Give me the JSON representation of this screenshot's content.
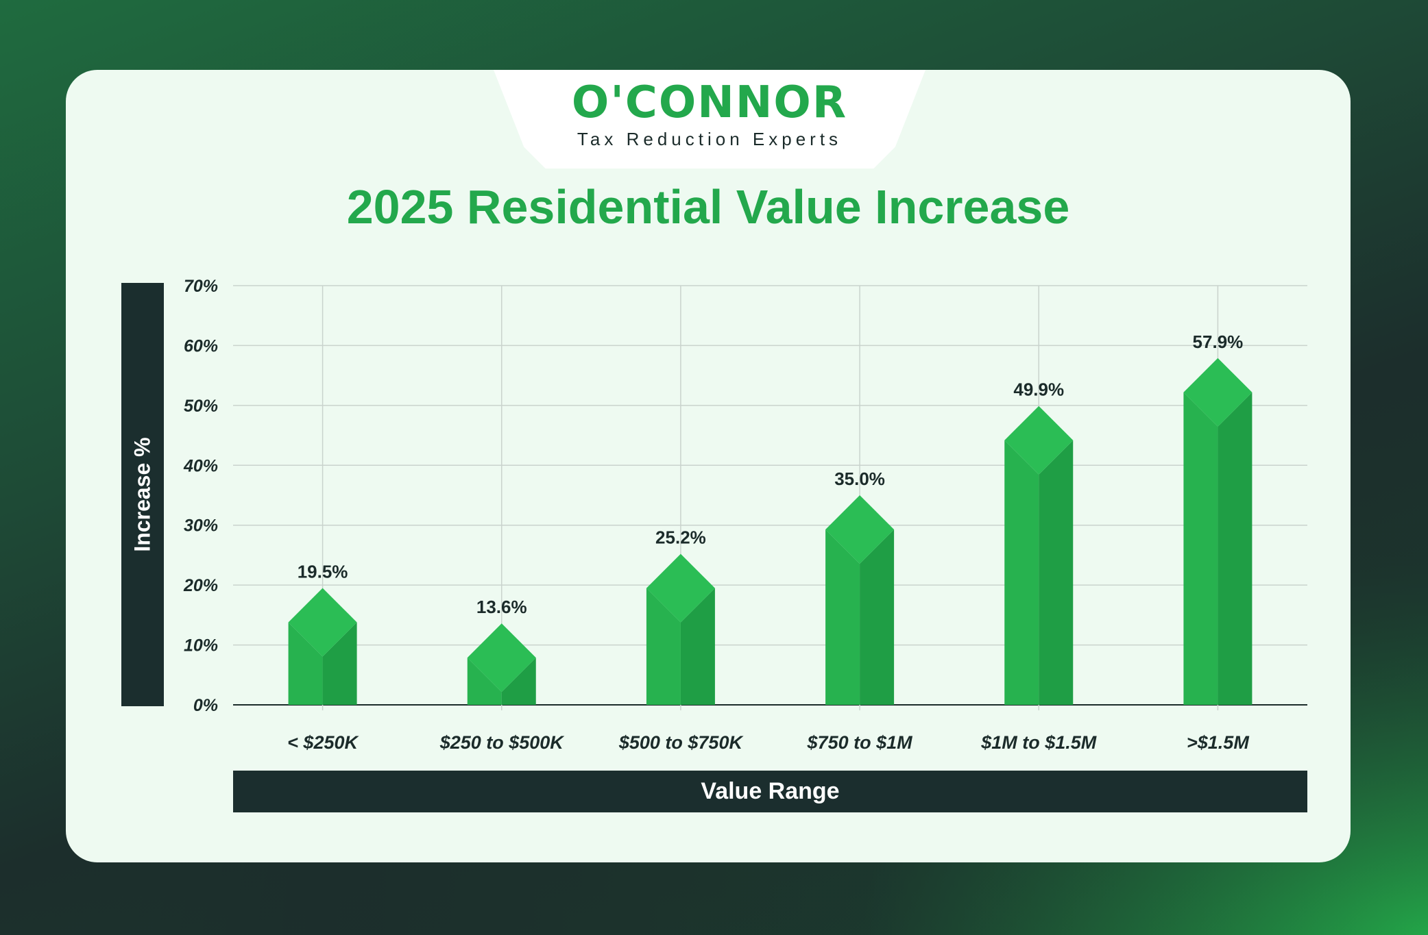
{
  "brand": {
    "name": "O'CONNOR",
    "tagline": "Tax Reduction Experts",
    "color": "#23a84c"
  },
  "chart_data": {
    "type": "bar",
    "title": "2025 Residential Value Increase",
    "xlabel": "Value Range",
    "ylabel": "Increase %",
    "categories": [
      "< $250K",
      "$250 to $500K",
      "$500 to $750K",
      "$750 to $1M",
      "$1M to $1.5M",
      ">$1.5M"
    ],
    "values": [
      19.5,
      13.6,
      25.2,
      35.0,
      49.9,
      57.9
    ],
    "value_labels": [
      "19.5%",
      "13.6%",
      "25.2%",
      "35.0%",
      "49.9%",
      "57.9%"
    ],
    "ylim": [
      0,
      70
    ],
    "yticks": [
      "0%",
      "10%",
      "20%",
      "30%",
      "40%",
      "50%",
      "60%",
      "70%"
    ],
    "grid": true,
    "legend": "none",
    "bar_color": "#23a84c"
  }
}
